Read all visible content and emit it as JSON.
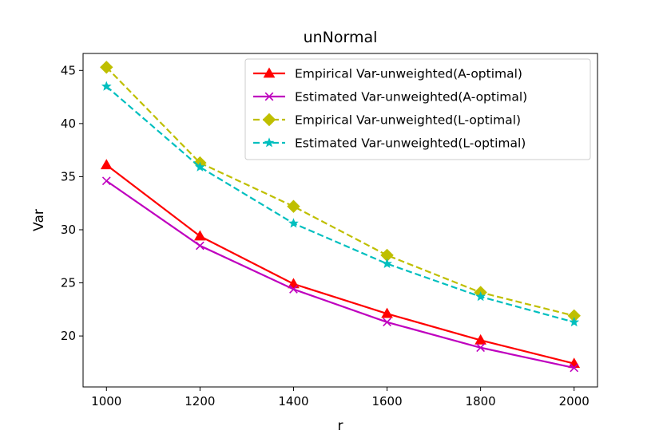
{
  "chart_data": {
    "type": "line",
    "title": "unNormal",
    "xlabel": "r",
    "ylabel": "Var",
    "x": [
      1000,
      1200,
      1400,
      1600,
      1800,
      2000
    ],
    "xlim": [
      950,
      2050
    ],
    "ylim": [
      15.2,
      46.6
    ],
    "xticks": [
      "1000",
      "1200",
      "1400",
      "1600",
      "1800",
      "2000"
    ],
    "yticks": [
      "20",
      "25",
      "30",
      "35",
      "40",
      "45"
    ],
    "legend_position": "top-right",
    "series": [
      {
        "name": "Empirical Var-unweighted(A-optimal)",
        "values": [
          36.1,
          29.4,
          24.9,
          22.1,
          19.6,
          17.4
        ],
        "color": "#ff0000",
        "marker": "triangle",
        "dash": "solid"
      },
      {
        "name": "Estimated Var-unweighted(A-optimal)",
        "values": [
          34.6,
          28.5,
          24.4,
          21.3,
          18.9,
          17.0
        ],
        "color": "#bf00bf",
        "marker": "x",
        "dash": "solid"
      },
      {
        "name": "Empirical Var-unweighted(L-optimal)",
        "values": [
          45.3,
          36.3,
          32.2,
          27.6,
          24.1,
          21.9
        ],
        "color": "#bfbf00",
        "marker": "diamond",
        "dash": "dashed"
      },
      {
        "name": "Estimated Var-unweighted(L-optimal)",
        "values": [
          43.5,
          35.9,
          30.6,
          26.8,
          23.7,
          21.3
        ],
        "color": "#00bfbf",
        "marker": "star",
        "dash": "dashed"
      }
    ]
  }
}
